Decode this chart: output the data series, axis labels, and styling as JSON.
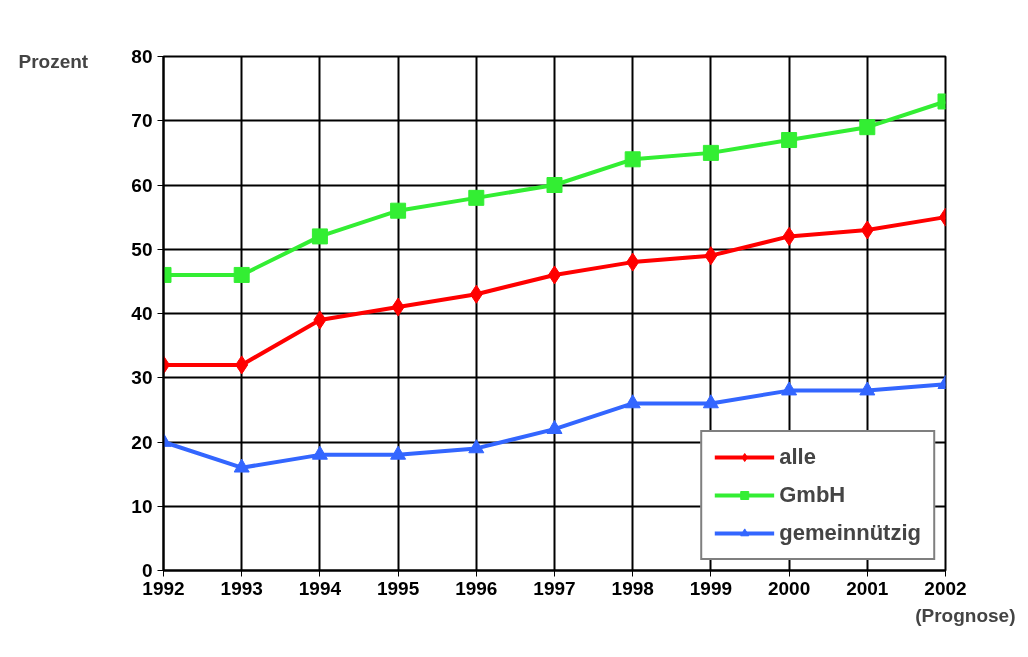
{
  "chart_data": {
    "type": "line",
    "x": [
      1992,
      1993,
      1994,
      1995,
      1996,
      1997,
      1998,
      1999,
      2000,
      2001,
      2002
    ],
    "series": [
      {
        "name": "alle",
        "color": "#ff0000",
        "marker": "diamond",
        "values": [
          32,
          32,
          39,
          41,
          43,
          46,
          48,
          49,
          52,
          53,
          55
        ]
      },
      {
        "name": "GmbH",
        "color": "#33ee33",
        "marker": "square",
        "values": [
          46,
          46,
          52,
          56,
          58,
          60,
          64,
          65,
          67,
          69,
          73
        ]
      },
      {
        "name": "gemeinnützig",
        "color": "#3366ff",
        "marker": "triangle",
        "values": [
          20,
          16,
          18,
          18,
          19,
          22,
          26,
          26,
          28,
          28,
          29
        ]
      }
    ],
    "ylabel": "Prozent",
    "xlim": [
      1992,
      2002
    ],
    "xticks": [
      1992,
      1993,
      1994,
      1995,
      1996,
      1997,
      1998,
      1999,
      2000,
      2001,
      2002
    ],
    "ylim": [
      0,
      80
    ],
    "yticks": [
      0,
      10,
      20,
      30,
      40,
      50,
      60,
      70,
      80
    ],
    "grid": true,
    "legend": "bottom right",
    "line_style": "solid",
    "annotations": [
      "(Prognose)"
    ]
  }
}
